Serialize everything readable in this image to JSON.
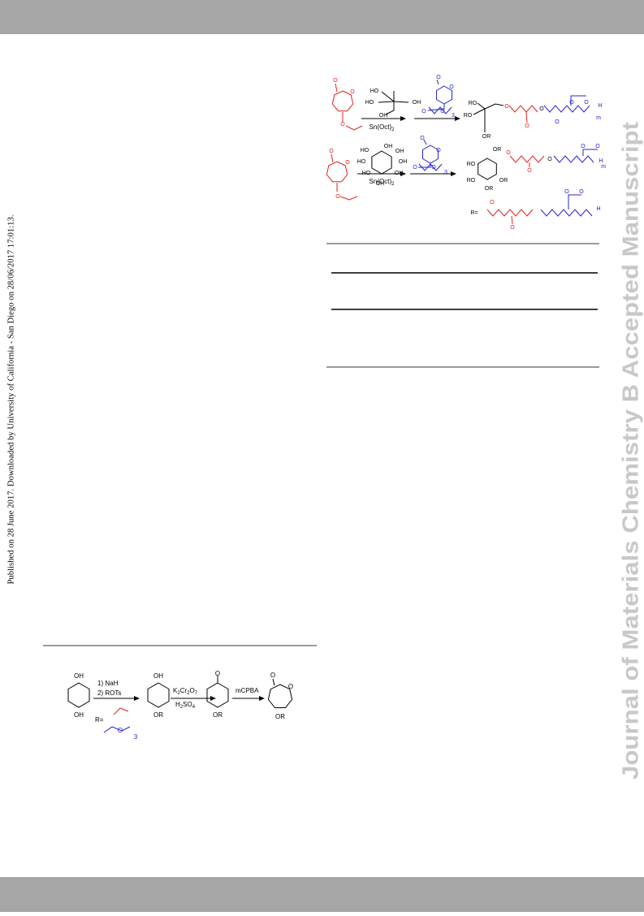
{
  "side_note": "Published on 28 June 2017. Downloaded by University of California - San Diego on 28/06/2017 17:01:13.",
  "watermark": "Journal of Materials Chemistry B Accepted Manuscript",
  "scheme_top": {
    "labels": [
      "O",
      "O",
      "O",
      "HO",
      "HO",
      "OH",
      "OH",
      "O",
      "O",
      "O",
      "O",
      "3",
      "RO",
      "RO",
      "OR",
      "O",
      "O",
      "O",
      "O",
      "O",
      "O",
      "H",
      "m",
      "O",
      "O",
      "O",
      "OH",
      "HO",
      "OH",
      "HO",
      "OH",
      "HO",
      "OH",
      "OH",
      "O",
      "O",
      "O",
      "O",
      "3",
      "OR",
      "RO",
      "OR",
      "RO",
      "OR",
      "O",
      "O",
      "O",
      "O",
      "O",
      "H",
      "m",
      "R=",
      "O",
      "O",
      "O",
      "O",
      "H"
    ],
    "reagent_1": [
      "Sn(Oct)",
      "2"
    ],
    "reagent_2": [
      "Sn(Oct)",
      "2"
    ]
  },
  "scheme_bottom": {
    "labels": [
      "OH",
      "OH",
      "1) NaH",
      "2) ROTs",
      "R=",
      "O",
      "3",
      "OH",
      "OR",
      "O",
      "OR",
      "mCPBA",
      "O",
      "O",
      "OR"
    ],
    "oxidant": [
      [
        "K",
        "2"
      ],
      [
        "Cr",
        "2"
      ],
      [
        "O",
        "7"
      ]
    ],
    "acid": [
      [
        "H",
        "2"
      ],
      [
        "SO",
        "4"
      ]
    ]
  }
}
